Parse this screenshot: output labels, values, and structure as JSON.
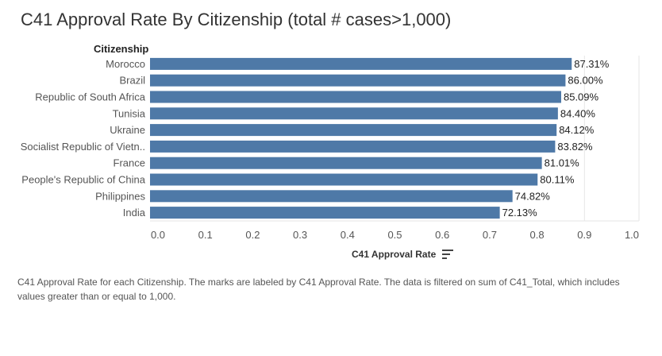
{
  "page": {
    "title": "C41 Approval Rate By Citizenship (total # cases>1,000)",
    "caption": "C41 Approval Rate for each Citizenship.  The marks are labeled by C41 Approval Rate. The data is filtered on sum of C41_Total, which includes values greater than or equal to 1,000."
  },
  "chart_data": {
    "type": "bar",
    "orientation": "horizontal",
    "title": "C41 Approval Rate By Citizenship (total # cases>1,000)",
    "row_header": "Citizenship",
    "xlabel": "C41 Approval Rate",
    "ylabel": "Citizenship",
    "sort_icon": "sort-descending-icon",
    "categories": [
      "Morocco",
      "Brazil",
      "Republic of South Africa",
      "Tunisia",
      "Ukraine",
      "Socialist Republic of Vietn..",
      "France",
      "People's Republic of China",
      "Philippines",
      "India"
    ],
    "values": [
      0.8731,
      0.86,
      0.8509,
      0.844,
      0.8412,
      0.8382,
      0.8101,
      0.8011,
      0.7482,
      0.7213
    ],
    "value_labels": [
      "87.31%",
      "86.00%",
      "85.09%",
      "84.40%",
      "84.12%",
      "83.82%",
      "81.01%",
      "80.11%",
      "74.82%",
      "72.13%"
    ],
    "xlim": [
      0,
      1.0
    ],
    "xticks": [
      "0.0",
      "0.1",
      "0.2",
      "0.3",
      "0.4",
      "0.5",
      "0.6",
      "0.7",
      "0.8",
      "0.9",
      "1.0"
    ],
    "colors": {
      "bar": "#4e79a7",
      "gridline": "#e6e6e6"
    },
    "grid": false
  }
}
